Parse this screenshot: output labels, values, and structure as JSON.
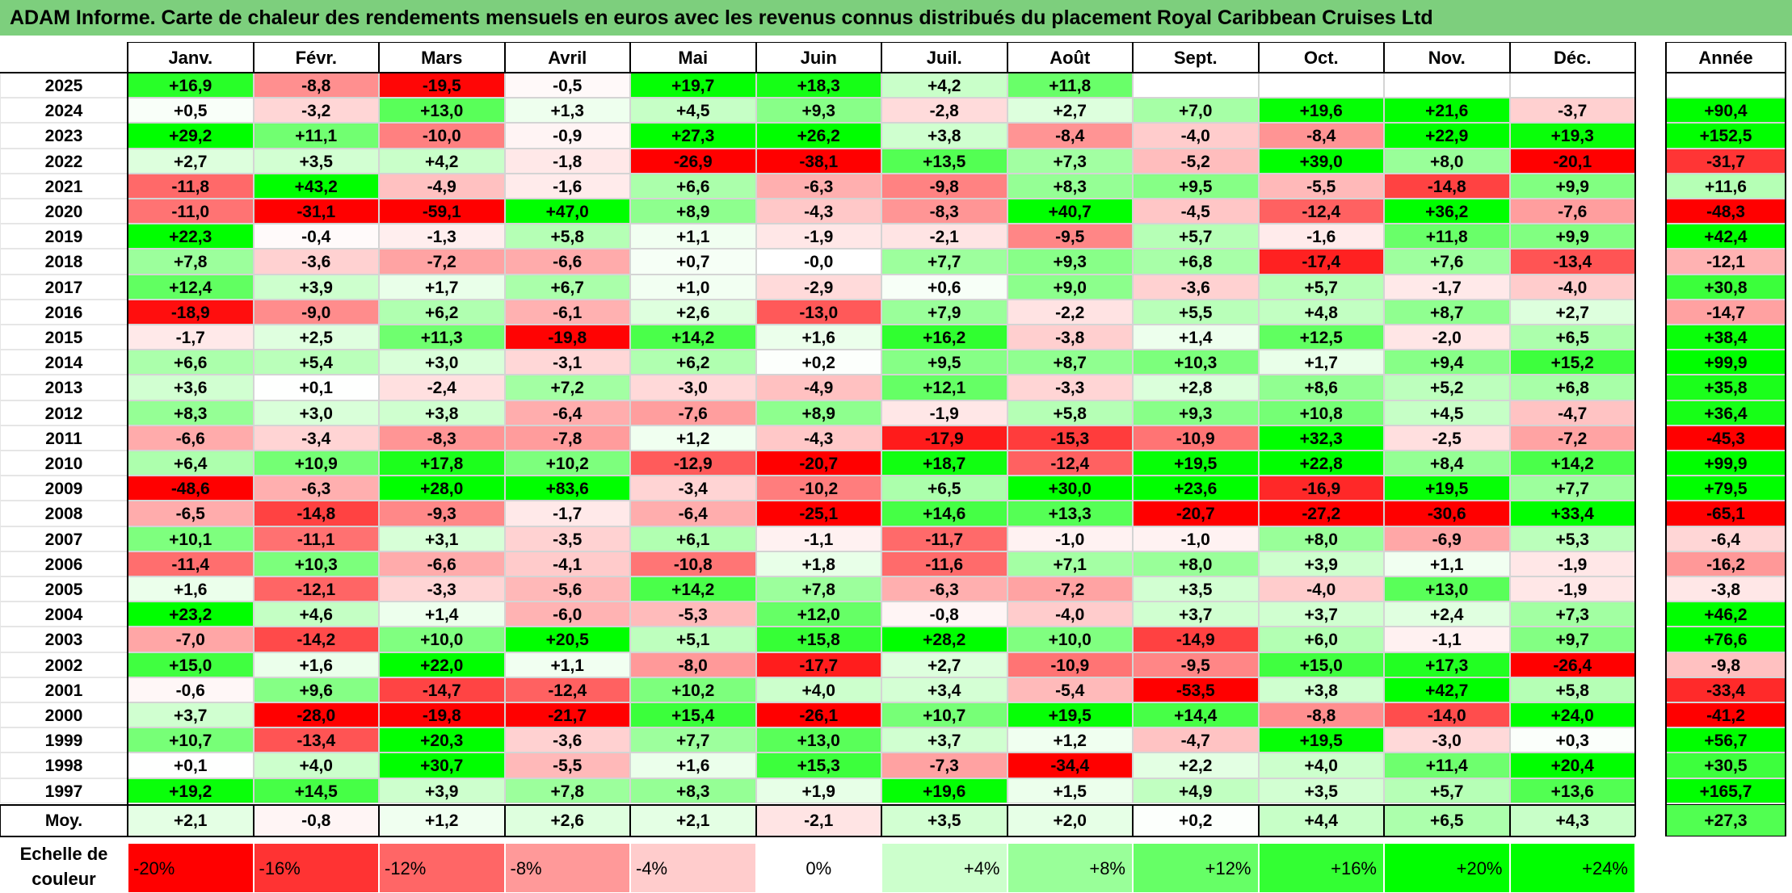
{
  "title": "ADAM Informe. Carte de chaleur des rendements mensuels en euros avec les revenus connus distribués du placement Royal Caribbean Cruises Ltd",
  "chart_data": {
    "type": "heatmap",
    "months": [
      "Janv.",
      "Févr.",
      "Mars",
      "Avril",
      "Mai",
      "Juin",
      "Juil.",
      "Août",
      "Sept.",
      "Oct.",
      "Nov.",
      "Déc."
    ],
    "annual_header": "Année",
    "rows": [
      {
        "year": "2025",
        "values": [
          "+16,9",
          "-8,8",
          "-19,5",
          "-0,5",
          "+19,7",
          "+18,3",
          "+4,2",
          "+11,8",
          "",
          "",
          "",
          ""
        ],
        "annual": ""
      },
      {
        "year": "2024",
        "values": [
          "+0,5",
          "-3,2",
          "+13,0",
          "+1,3",
          "+4,5",
          "+9,3",
          "-2,8",
          "+2,7",
          "+7,0",
          "+19,6",
          "+21,6",
          "-3,7"
        ],
        "annual": "+90,4"
      },
      {
        "year": "2023",
        "values": [
          "+29,2",
          "+11,1",
          "-10,0",
          "-0,9",
          "+27,3",
          "+26,2",
          "+3,8",
          "-8,4",
          "-4,0",
          "-8,4",
          "+22,9",
          "+19,3"
        ],
        "annual": "+152,5"
      },
      {
        "year": "2022",
        "values": [
          "+2,7",
          "+3,5",
          "+4,2",
          "-1,8",
          "-26,9",
          "-38,1",
          "+13,5",
          "+7,3",
          "-5,2",
          "+39,0",
          "+8,0",
          "-20,1"
        ],
        "annual": "-31,7"
      },
      {
        "year": "2021",
        "values": [
          "-11,8",
          "+43,2",
          "-4,9",
          "-1,6",
          "+6,6",
          "-6,3",
          "-9,8",
          "+8,3",
          "+9,5",
          "-5,5",
          "-14,8",
          "+9,9"
        ],
        "annual": "+11,6"
      },
      {
        "year": "2020",
        "values": [
          "-11,0",
          "-31,1",
          "-59,1",
          "+47,0",
          "+8,9",
          "-4,3",
          "-8,3",
          "+40,7",
          "-4,5",
          "-12,4",
          "+36,2",
          "-7,6"
        ],
        "annual": "-48,3"
      },
      {
        "year": "2019",
        "values": [
          "+22,3",
          "-0,4",
          "-1,3",
          "+5,8",
          "+1,1",
          "-1,9",
          "-2,1",
          "-9,5",
          "+5,7",
          "-1,6",
          "+11,8",
          "+9,9"
        ],
        "annual": "+42,4"
      },
      {
        "year": "2018",
        "values": [
          "+7,8",
          "-3,6",
          "-7,2",
          "-6,6",
          "+0,7",
          "-0,0",
          "+7,7",
          "+9,3",
          "+6,8",
          "-17,4",
          "+7,6",
          "-13,4"
        ],
        "annual": "-12,1"
      },
      {
        "year": "2017",
        "values": [
          "+12,4",
          "+3,9",
          "+1,7",
          "+6,7",
          "+1,0",
          "-2,9",
          "+0,6",
          "+9,0",
          "-3,6",
          "+5,7",
          "-1,7",
          "-4,0"
        ],
        "annual": "+30,8"
      },
      {
        "year": "2016",
        "values": [
          "-18,9",
          "-9,0",
          "+6,2",
          "-6,1",
          "+2,6",
          "-13,0",
          "+7,9",
          "-2,2",
          "+5,5",
          "+4,8",
          "+8,7",
          "+2,7"
        ],
        "annual": "-14,7"
      },
      {
        "year": "2015",
        "values": [
          "-1,7",
          "+2,5",
          "+11,3",
          "-19,8",
          "+14,2",
          "+1,6",
          "+16,2",
          "-3,8",
          "+1,4",
          "+12,5",
          "-2,0",
          "+6,5"
        ],
        "annual": "+38,4"
      },
      {
        "year": "2014",
        "values": [
          "+6,6",
          "+5,4",
          "+3,0",
          "-3,1",
          "+6,2",
          "+0,2",
          "+9,5",
          "+8,7",
          "+10,3",
          "+1,7",
          "+9,4",
          "+15,2"
        ],
        "annual": "+99,9"
      },
      {
        "year": "2013",
        "values": [
          "+3,6",
          "+0,1",
          "-2,4",
          "+7,2",
          "-3,0",
          "-4,9",
          "+12,1",
          "-3,3",
          "+2,8",
          "+8,6",
          "+5,2",
          "+6,8"
        ],
        "annual": "+35,8"
      },
      {
        "year": "2012",
        "values": [
          "+8,3",
          "+3,0",
          "+3,8",
          "-6,4",
          "-7,6",
          "+8,9",
          "-1,9",
          "+5,8",
          "+9,3",
          "+10,8",
          "+4,5",
          "-4,7"
        ],
        "annual": "+36,4"
      },
      {
        "year": "2011",
        "values": [
          "-6,6",
          "-3,4",
          "-8,3",
          "-7,8",
          "+1,2",
          "-4,3",
          "-17,9",
          "-15,3",
          "-10,9",
          "+32,3",
          "-2,5",
          "-7,2"
        ],
        "annual": "-45,3"
      },
      {
        "year": "2010",
        "values": [
          "+6,4",
          "+10,9",
          "+17,8",
          "+10,2",
          "-12,9",
          "-20,7",
          "+18,7",
          "-12,4",
          "+19,5",
          "+22,8",
          "+8,4",
          "+14,2"
        ],
        "annual": "+99,9"
      },
      {
        "year": "2009",
        "values": [
          "-48,6",
          "-6,3",
          "+28,0",
          "+83,6",
          "-3,4",
          "-10,2",
          "+6,5",
          "+30,0",
          "+23,6",
          "-16,9",
          "+19,5",
          "+7,7"
        ],
        "annual": "+79,5"
      },
      {
        "year": "2008",
        "values": [
          "-6,5",
          "-14,8",
          "-9,3",
          "-1,7",
          "-6,4",
          "-25,1",
          "+14,6",
          "+13,3",
          "-20,7",
          "-27,2",
          "-30,6",
          "+33,4"
        ],
        "annual": "-65,1"
      },
      {
        "year": "2007",
        "values": [
          "+10,1",
          "-11,1",
          "+3,1",
          "-3,5",
          "+6,1",
          "-1,1",
          "-11,7",
          "-1,0",
          "-1,0",
          "+8,0",
          "-6,9",
          "+5,3"
        ],
        "annual": "-6,4"
      },
      {
        "year": "2006",
        "values": [
          "-11,4",
          "+10,3",
          "-6,6",
          "-4,1",
          "-10,8",
          "+1,8",
          "-11,6",
          "+7,1",
          "+8,0",
          "+3,9",
          "+1,1",
          "-1,9"
        ],
        "annual": "-16,2"
      },
      {
        "year": "2005",
        "values": [
          "+1,6",
          "-12,1",
          "-3,3",
          "-5,6",
          "+14,2",
          "+7,8",
          "-6,3",
          "-7,2",
          "+3,5",
          "-4,0",
          "+13,0",
          "-1,9"
        ],
        "annual": "-3,8"
      },
      {
        "year": "2004",
        "values": [
          "+23,2",
          "+4,6",
          "+1,4",
          "-6,0",
          "-5,3",
          "+12,0",
          "-0,8",
          "-4,0",
          "+3,7",
          "+3,7",
          "+2,4",
          "+7,3"
        ],
        "annual": "+46,2"
      },
      {
        "year": "2003",
        "values": [
          "-7,0",
          "-14,2",
          "+10,0",
          "+20,5",
          "+5,1",
          "+15,8",
          "+28,2",
          "+10,0",
          "-14,9",
          "+6,0",
          "-1,1",
          "+9,7"
        ],
        "annual": "+76,6"
      },
      {
        "year": "2002",
        "values": [
          "+15,0",
          "+1,6",
          "+22,0",
          "+1,1",
          "-8,0",
          "-17,7",
          "+2,7",
          "-10,9",
          "-9,5",
          "+15,0",
          "+17,3",
          "-26,4"
        ],
        "annual": "-9,8"
      },
      {
        "year": "2001",
        "values": [
          "-0,6",
          "+9,6",
          "-14,7",
          "-12,4",
          "+10,2",
          "+4,0",
          "+3,4",
          "-5,4",
          "-53,5",
          "+3,8",
          "+42,7",
          "+5,8"
        ],
        "annual": "-33,4"
      },
      {
        "year": "2000",
        "values": [
          "+3,7",
          "-28,0",
          "-19,8",
          "-21,7",
          "+15,4",
          "-26,1",
          "+10,7",
          "+19,5",
          "+14,4",
          "-8,8",
          "-14,0",
          "+24,0"
        ],
        "annual": "-41,2"
      },
      {
        "year": "1999",
        "values": [
          "+10,7",
          "-13,4",
          "+20,3",
          "-3,6",
          "+7,7",
          "+13,0",
          "+3,7",
          "+1,2",
          "-4,7",
          "+19,5",
          "-3,0",
          "+0,3"
        ],
        "annual": "+56,7"
      },
      {
        "year": "1998",
        "values": [
          "+0,1",
          "+4,0",
          "+30,7",
          "-5,5",
          "+1,6",
          "+15,3",
          "-7,3",
          "-34,4",
          "+2,2",
          "+4,0",
          "+11,4",
          "+20,4"
        ],
        "annual": "+30,5"
      },
      {
        "year": "1997",
        "values": [
          "+19,2",
          "+14,5",
          "+3,9",
          "+7,8",
          "+8,3",
          "+1,9",
          "+19,6",
          "+1,5",
          "+4,9",
          "+3,5",
          "+5,7",
          "+13,6"
        ],
        "annual": "+165,7"
      }
    ],
    "average": {
      "label": "Moy.",
      "values": [
        "+2,1",
        "-0,8",
        "+1,2",
        "+2,6",
        "+2,1",
        "-2,1",
        "+3,5",
        "+2,0",
        "+0,2",
        "+4,4",
        "+6,5",
        "+4,3"
      ],
      "annual": "+27,3"
    },
    "color_scale": {
      "label": "Echelle de couleur",
      "stops": [
        "-20%",
        "-16%",
        "-12%",
        "-8%",
        "-4%",
        "0%",
        "+4%",
        "+8%",
        "+12%",
        "+16%",
        "+20%",
        "+24%"
      ]
    },
    "colors": {
      "negative_max": "#ff0000",
      "neutral": "#ffffff",
      "positive_max": "#00ff00",
      "title_background": "#7dcf7d"
    }
  }
}
